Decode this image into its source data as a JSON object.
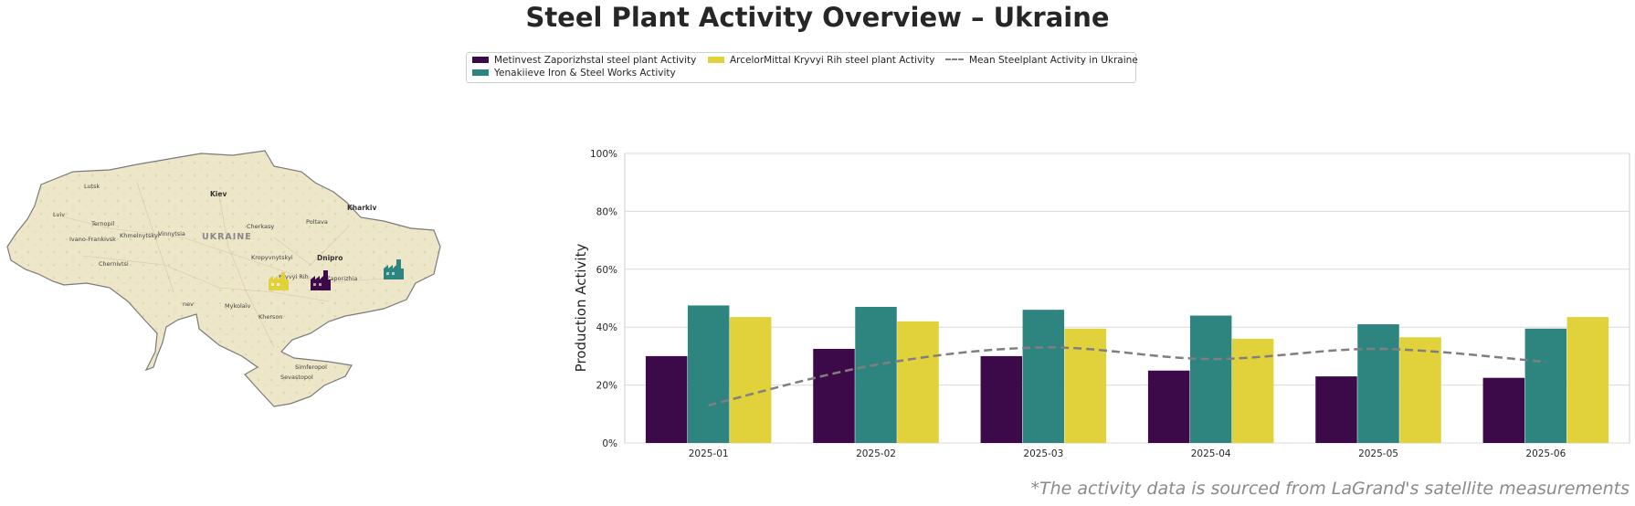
{
  "title": "Steel Plant Activity Overview – Ukraine",
  "footer": "*The activity data is sourced from LaGrand's satellite measurements",
  "legend": [
    {
      "label": "Metinvest Zaporizhstal steel plant Activity",
      "kind": "bar",
      "color": "#3d0a49"
    },
    {
      "label": "Yenakiieve Iron & Steel Works Activity",
      "kind": "bar",
      "color": "#2e8580"
    },
    {
      "label": "ArcelorMittal Kryvyi Rih steel plant Activity",
      "kind": "bar",
      "color": "#e1d23b"
    },
    {
      "label": "Mean Steelplant Activity in Ukraine",
      "kind": "dashed-line",
      "color": "#7f7f7f"
    }
  ],
  "map": {
    "country_label": "UKRAINE",
    "cities": [
      "Kiev",
      "Kharkiv",
      "Lutsk",
      "Lviv",
      "Ternopil",
      "Ivano-Frankivsk",
      "Khmelnytskyi",
      "Vinnytsia",
      "Chernivtsi",
      "Cherkasy",
      "Poltava",
      "Kropyvnytskyi",
      "Dnipro",
      "Kryvyi Rih",
      "Zaporizhia",
      "Mykolaiv",
      "Kherson",
      "Simferopol",
      "Sevastopol",
      "nev"
    ],
    "plant_markers": [
      {
        "name": "ArcelorMittal Kryvyi Rih steel plant",
        "icon": "factory-icon",
        "color": "#e1d23b"
      },
      {
        "name": "Metinvest Zaporizhstal steel plant",
        "icon": "factory-icon",
        "color": "#3d0a49"
      },
      {
        "name": "Yenakiieve Iron & Steel Works",
        "icon": "factory-icon",
        "color": "#2e8580"
      }
    ]
  },
  "chart_data": {
    "type": "bar",
    "categories": [
      "2025-01",
      "2025-02",
      "2025-03",
      "2025-04",
      "2025-05",
      "2025-06"
    ],
    "series": [
      {
        "name": "Metinvest Zaporizhstal steel plant Activity",
        "color": "#3d0a49",
        "values": [
          30,
          32.5,
          30,
          25,
          23,
          22.5
        ]
      },
      {
        "name": "Yenakiieve Iron & Steel Works Activity",
        "color": "#2e8580",
        "values": [
          47.5,
          47,
          46,
          44,
          41,
          39.5
        ]
      },
      {
        "name": "ArcelorMittal Kryvyi Rih steel plant Activity",
        "color": "#e1d23b",
        "values": [
          43.5,
          42,
          39.5,
          36,
          36.5,
          43.5
        ]
      }
    ],
    "mean_line": {
      "name": "Mean Steelplant Activity in Ukraine",
      "color": "#7f7f7f",
      "style": "dashed",
      "values": [
        13,
        27,
        33,
        29,
        32.5,
        28
      ]
    },
    "ylabel": "Production Activity",
    "xlabel": "",
    "ylim": [
      0,
      100
    ],
    "yticks": [
      "0%",
      "20%",
      "40%",
      "60%",
      "80%",
      "100%"
    ],
    "grid": "horizontal"
  }
}
